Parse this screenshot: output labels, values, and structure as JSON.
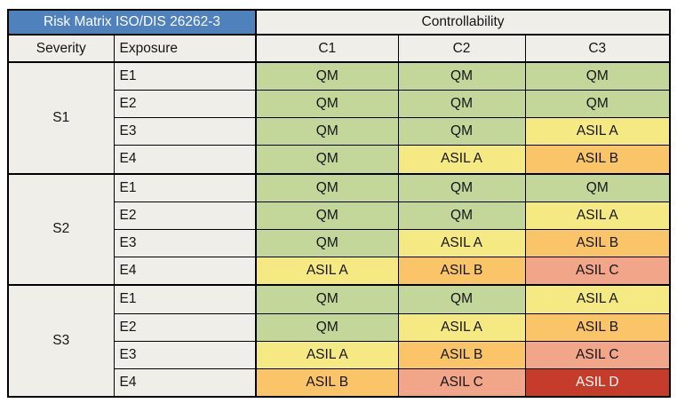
{
  "header": {
    "title": "Risk Matrix ISO/DIS 26262-3",
    "controllability": "Controllability",
    "severity": "Severity",
    "exposure": "Exposure",
    "c_columns": [
      "C1",
      "C2",
      "C3"
    ]
  },
  "colors": {
    "title_bg": "#4F81BD",
    "title_text": "#FFFFFF",
    "header_bg": "#EFEEE9",
    "border": "#000000",
    "text": "#151515",
    "asil_d_text": "#FFFFFF",
    "QM": "#C4D79B",
    "ASIL A": "#F5E983",
    "ASIL B": "#FAC468",
    "ASIL C": "#F1A589",
    "ASIL D": "#C53C2B"
  },
  "chart_data": {
    "type": "table",
    "title": "Risk Matrix ISO/DIS 26262-3",
    "column_group_header": "Controllability",
    "columns": [
      "Severity",
      "Exposure",
      "C1",
      "C2",
      "C3"
    ],
    "rows": [
      [
        "S1",
        "E1",
        "QM",
        "QM",
        "QM"
      ],
      [
        "S1",
        "E2",
        "QM",
        "QM",
        "QM"
      ],
      [
        "S1",
        "E3",
        "QM",
        "QM",
        "ASIL A"
      ],
      [
        "S1",
        "E4",
        "QM",
        "ASIL A",
        "ASIL B"
      ],
      [
        "S2",
        "E1",
        "QM",
        "QM",
        "QM"
      ],
      [
        "S2",
        "E2",
        "QM",
        "QM",
        "ASIL A"
      ],
      [
        "S2",
        "E3",
        "QM",
        "ASIL A",
        "ASIL B"
      ],
      [
        "S2",
        "E4",
        "ASIL A",
        "ASIL B",
        "ASIL C"
      ],
      [
        "S3",
        "E1",
        "QM",
        "QM",
        "ASIL A"
      ],
      [
        "S3",
        "E2",
        "QM",
        "ASIL A",
        "ASIL B"
      ],
      [
        "S3",
        "E3",
        "ASIL A",
        "ASIL B",
        "ASIL C"
      ],
      [
        "S3",
        "E4",
        "ASIL B",
        "ASIL C",
        "ASIL D"
      ]
    ],
    "cell_color_legend": {
      "QM": "#C4D79B",
      "ASIL A": "#F5E983",
      "ASIL B": "#FAC468",
      "ASIL C": "#F1A589",
      "ASIL D": "#C53C2B"
    }
  }
}
